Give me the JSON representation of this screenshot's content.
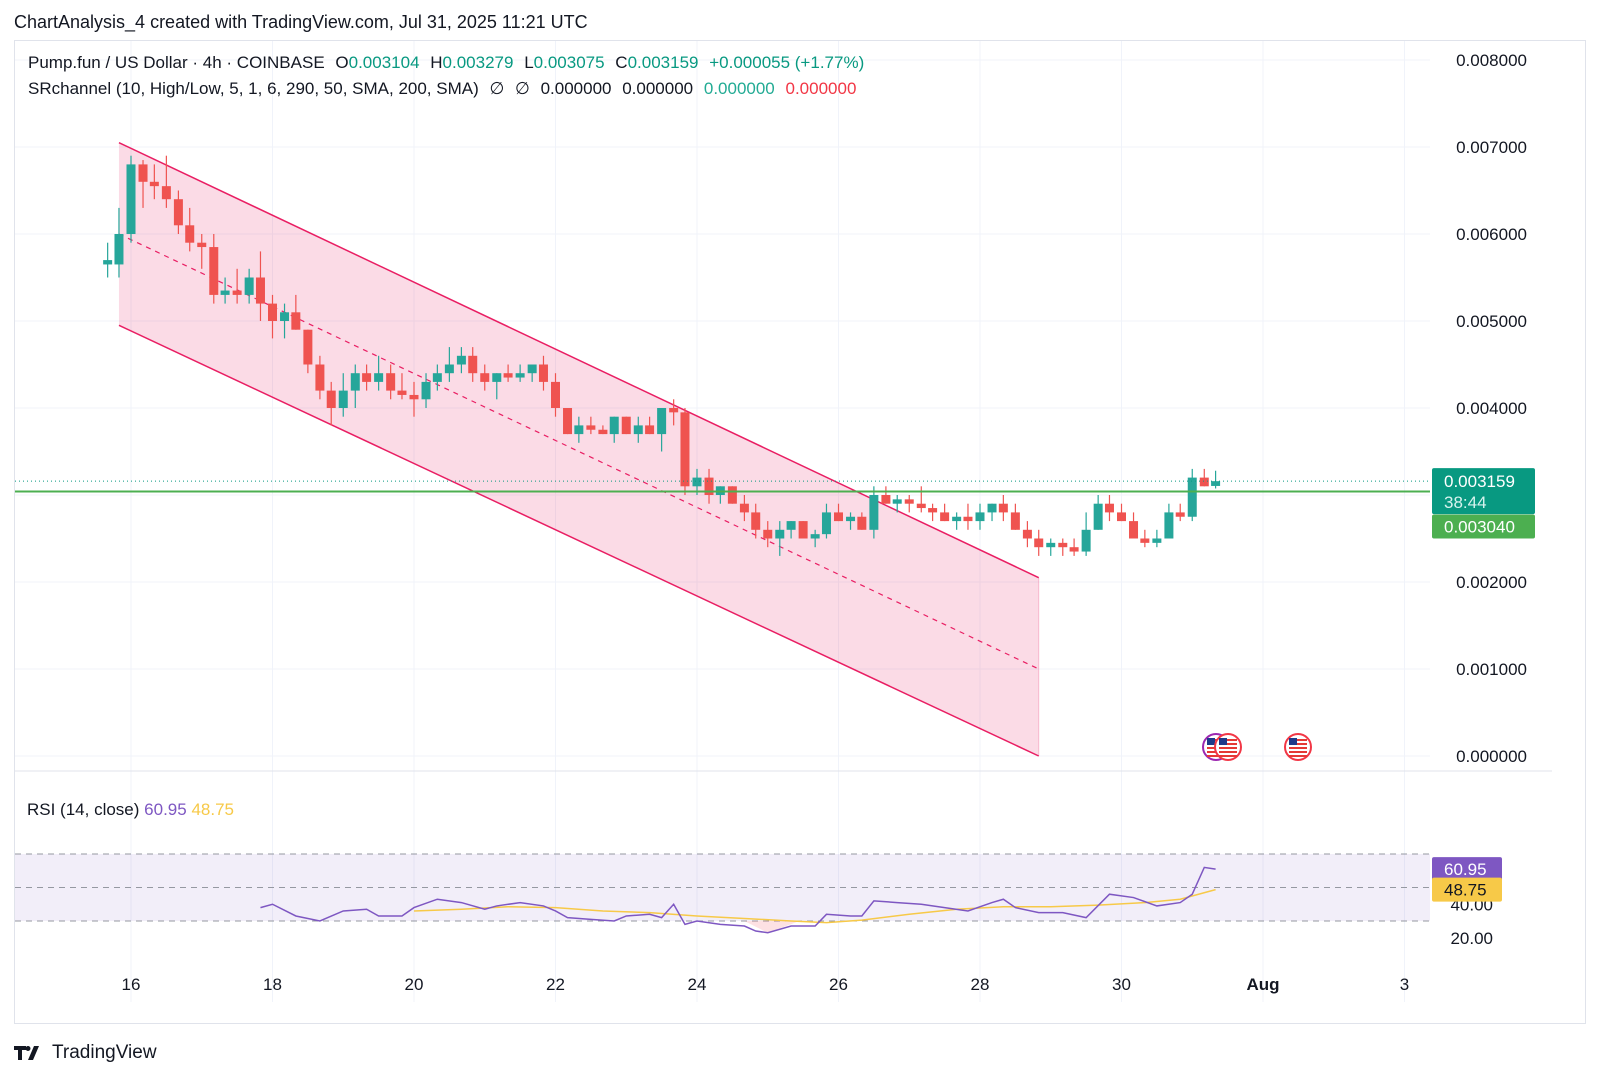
{
  "header": {
    "created": "ChartAnalysis_4 created with TradingView.com, Jul 31, 2025 11:21 UTC"
  },
  "legend": {
    "symbol": "Pump.fun / US Dollar · 4h · COINBASE",
    "open_label": "O",
    "open": "0.003104",
    "high_label": "H",
    "high": "0.003279",
    "low_label": "L",
    "low": "0.003075",
    "close_label": "C",
    "close": "0.003159",
    "change": "+0.000055 (+1.77%)",
    "indicator": "SRchannel (10, High/Low, 5, 1, 6, 290, 50, SMA, 200, SMA)",
    "ind_sym1": "∅",
    "ind_sym2": "∅",
    "ind_v1": "0.000000",
    "ind_v2": "0.000000",
    "ind_v3": "0.000000",
    "ind_v4": "0.000000"
  },
  "rsi_label": {
    "name": "RSI (14, close)",
    "value": "60.95",
    "ma": "48.75"
  },
  "price_axis": {
    "ticks": [
      "0.008000",
      "0.007000",
      "0.006000",
      "0.005000",
      "0.004000",
      "0.002000",
      "0.001000",
      "0.000000"
    ],
    "last_price": "0.003159",
    "countdown": "38:44",
    "level": "0.003040"
  },
  "rsi_axis": {
    "ticks": [
      "40.00",
      "20.00"
    ],
    "rsi_tag": "60.95",
    "ma_tag": "48.75"
  },
  "time_axis": {
    "ticks": [
      "16",
      "18",
      "20",
      "22",
      "24",
      "26",
      "28",
      "30",
      "Aug",
      "3"
    ]
  },
  "brand": {
    "name": "TradingView"
  },
  "colors": {
    "up": "#26a69a",
    "down": "#ef5350",
    "channel": "#e91e63",
    "level": "#4caf50",
    "rsi": "#7e57c2",
    "rsi_ma": "#f7c948"
  },
  "chart_data": {
    "type": "candlestick",
    "time_unit": "4h candles, July 15 - Aug 1 2025",
    "price_ylim": [
      0,
      0.008
    ],
    "channel": {
      "upper": {
        "from": [
          15.83,
          0.00705
        ],
        "to": [
          28.83,
          0.00205
        ]
      },
      "lower": {
        "from": [
          15.83,
          0.00495
        ],
        "to": [
          28.83,
          0.0
        ]
      },
      "mid": {
        "from": [
          15.83,
          0.006
        ],
        "to": [
          28.83,
          0.001
        ]
      }
    },
    "horizontal_level": 0.00304,
    "candles": [
      {
        "t": 15.67,
        "o": 0.00565,
        "h": 0.0059,
        "l": 0.0055,
        "c": 0.0057
      },
      {
        "t": 15.83,
        "o": 0.00565,
        "h": 0.0063,
        "l": 0.0055,
        "c": 0.006
      },
      {
        "t": 16.0,
        "o": 0.006,
        "h": 0.0069,
        "l": 0.0059,
        "c": 0.0068
      },
      {
        "t": 16.17,
        "o": 0.0068,
        "h": 0.00685,
        "l": 0.0063,
        "c": 0.0066
      },
      {
        "t": 16.33,
        "o": 0.0066,
        "h": 0.0068,
        "l": 0.0064,
        "c": 0.00655
      },
      {
        "t": 16.5,
        "o": 0.00655,
        "h": 0.0069,
        "l": 0.0063,
        "c": 0.0064
      },
      {
        "t": 16.67,
        "o": 0.0064,
        "h": 0.0065,
        "l": 0.006,
        "c": 0.0061
      },
      {
        "t": 16.83,
        "o": 0.0061,
        "h": 0.0063,
        "l": 0.0058,
        "c": 0.0059
      },
      {
        "t": 17.0,
        "o": 0.0059,
        "h": 0.006,
        "l": 0.0056,
        "c": 0.00585
      },
      {
        "t": 17.17,
        "o": 0.00585,
        "h": 0.006,
        "l": 0.0052,
        "c": 0.0053
      },
      {
        "t": 17.33,
        "o": 0.0053,
        "h": 0.0055,
        "l": 0.0052,
        "c": 0.00535
      },
      {
        "t": 17.5,
        "o": 0.00535,
        "h": 0.0056,
        "l": 0.0052,
        "c": 0.0053
      },
      {
        "t": 17.67,
        "o": 0.0053,
        "h": 0.0056,
        "l": 0.0052,
        "c": 0.0055
      },
      {
        "t": 17.83,
        "o": 0.0055,
        "h": 0.0058,
        "l": 0.005,
        "c": 0.0052
      },
      {
        "t": 18.0,
        "o": 0.0052,
        "h": 0.0053,
        "l": 0.0048,
        "c": 0.005
      },
      {
        "t": 18.17,
        "o": 0.005,
        "h": 0.0052,
        "l": 0.0048,
        "c": 0.0051
      },
      {
        "t": 18.33,
        "o": 0.0051,
        "h": 0.0053,
        "l": 0.0049,
        "c": 0.0049
      },
      {
        "t": 18.5,
        "o": 0.0049,
        "h": 0.0049,
        "l": 0.0044,
        "c": 0.0045
      },
      {
        "t": 18.67,
        "o": 0.0045,
        "h": 0.0046,
        "l": 0.0041,
        "c": 0.0042
      },
      {
        "t": 18.83,
        "o": 0.0042,
        "h": 0.0043,
        "l": 0.0038,
        "c": 0.004
      },
      {
        "t": 19.0,
        "o": 0.004,
        "h": 0.0044,
        "l": 0.0039,
        "c": 0.0042
      },
      {
        "t": 19.17,
        "o": 0.0042,
        "h": 0.0045,
        "l": 0.004,
        "c": 0.0044
      },
      {
        "t": 19.33,
        "o": 0.0044,
        "h": 0.0045,
        "l": 0.0042,
        "c": 0.0043
      },
      {
        "t": 19.5,
        "o": 0.0043,
        "h": 0.0046,
        "l": 0.0042,
        "c": 0.0044
      },
      {
        "t": 19.67,
        "o": 0.0044,
        "h": 0.0045,
        "l": 0.0041,
        "c": 0.0042
      },
      {
        "t": 19.83,
        "o": 0.0042,
        "h": 0.0044,
        "l": 0.0041,
        "c": 0.00415
      },
      {
        "t": 20.0,
        "o": 0.00415,
        "h": 0.0043,
        "l": 0.0039,
        "c": 0.0041
      },
      {
        "t": 20.17,
        "o": 0.0041,
        "h": 0.0044,
        "l": 0.004,
        "c": 0.0043
      },
      {
        "t": 20.33,
        "o": 0.0043,
        "h": 0.0045,
        "l": 0.0042,
        "c": 0.0044
      },
      {
        "t": 20.5,
        "o": 0.0044,
        "h": 0.0047,
        "l": 0.0043,
        "c": 0.0045
      },
      {
        "t": 20.67,
        "o": 0.0045,
        "h": 0.0047,
        "l": 0.0044,
        "c": 0.0046
      },
      {
        "t": 20.83,
        "o": 0.0046,
        "h": 0.0047,
        "l": 0.0043,
        "c": 0.0044
      },
      {
        "t": 21.0,
        "o": 0.0044,
        "h": 0.0045,
        "l": 0.0042,
        "c": 0.0043
      },
      {
        "t": 21.17,
        "o": 0.0043,
        "h": 0.0044,
        "l": 0.0041,
        "c": 0.0044
      },
      {
        "t": 21.33,
        "o": 0.0044,
        "h": 0.0045,
        "l": 0.0043,
        "c": 0.00435
      },
      {
        "t": 21.5,
        "o": 0.00435,
        "h": 0.0045,
        "l": 0.0043,
        "c": 0.0044
      },
      {
        "t": 21.67,
        "o": 0.0044,
        "h": 0.0045,
        "l": 0.0043,
        "c": 0.0045
      },
      {
        "t": 21.83,
        "o": 0.0045,
        "h": 0.0046,
        "l": 0.0042,
        "c": 0.0043
      },
      {
        "t": 22.0,
        "o": 0.0043,
        "h": 0.0044,
        "l": 0.0039,
        "c": 0.004
      },
      {
        "t": 22.17,
        "o": 0.004,
        "h": 0.004,
        "l": 0.0037,
        "c": 0.0037
      },
      {
        "t": 22.33,
        "o": 0.0037,
        "h": 0.0039,
        "l": 0.0036,
        "c": 0.0038
      },
      {
        "t": 22.5,
        "o": 0.0038,
        "h": 0.0039,
        "l": 0.0037,
        "c": 0.00375
      },
      {
        "t": 22.67,
        "o": 0.00375,
        "h": 0.0038,
        "l": 0.0037,
        "c": 0.0037
      },
      {
        "t": 22.83,
        "o": 0.0037,
        "h": 0.0039,
        "l": 0.0036,
        "c": 0.0039
      },
      {
        "t": 23.0,
        "o": 0.0039,
        "h": 0.0039,
        "l": 0.0037,
        "c": 0.0037
      },
      {
        "t": 23.17,
        "o": 0.0037,
        "h": 0.0039,
        "l": 0.0036,
        "c": 0.0038
      },
      {
        "t": 23.33,
        "o": 0.0038,
        "h": 0.0039,
        "l": 0.0037,
        "c": 0.0037
      },
      {
        "t": 23.5,
        "o": 0.0037,
        "h": 0.004,
        "l": 0.0035,
        "c": 0.004
      },
      {
        "t": 23.67,
        "o": 0.004,
        "h": 0.0041,
        "l": 0.0038,
        "c": 0.00395
      },
      {
        "t": 23.83,
        "o": 0.00395,
        "h": 0.004,
        "l": 0.003,
        "c": 0.0031
      },
      {
        "t": 24.0,
        "o": 0.0031,
        "h": 0.0033,
        "l": 0.003,
        "c": 0.0032
      },
      {
        "t": 24.17,
        "o": 0.0032,
        "h": 0.0033,
        "l": 0.0029,
        "c": 0.003
      },
      {
        "t": 24.33,
        "o": 0.003,
        "h": 0.0031,
        "l": 0.0029,
        "c": 0.0031
      },
      {
        "t": 24.5,
        "o": 0.0031,
        "h": 0.0031,
        "l": 0.0029,
        "c": 0.0029
      },
      {
        "t": 24.67,
        "o": 0.0029,
        "h": 0.003,
        "l": 0.0027,
        "c": 0.0028
      },
      {
        "t": 24.83,
        "o": 0.0028,
        "h": 0.0029,
        "l": 0.0025,
        "c": 0.0026
      },
      {
        "t": 25.0,
        "o": 0.0026,
        "h": 0.0027,
        "l": 0.0024,
        "c": 0.0025
      },
      {
        "t": 25.17,
        "o": 0.0025,
        "h": 0.0027,
        "l": 0.0023,
        "c": 0.0026
      },
      {
        "t": 25.33,
        "o": 0.0026,
        "h": 0.0027,
        "l": 0.0025,
        "c": 0.0027
      },
      {
        "t": 25.5,
        "o": 0.0027,
        "h": 0.0027,
        "l": 0.0025,
        "c": 0.0025
      },
      {
        "t": 25.67,
        "o": 0.0025,
        "h": 0.0026,
        "l": 0.0024,
        "c": 0.00255
      },
      {
        "t": 25.83,
        "o": 0.00255,
        "h": 0.0029,
        "l": 0.0025,
        "c": 0.0028
      },
      {
        "t": 26.0,
        "o": 0.0028,
        "h": 0.0029,
        "l": 0.0027,
        "c": 0.0027
      },
      {
        "t": 26.17,
        "o": 0.0027,
        "h": 0.0028,
        "l": 0.0026,
        "c": 0.00275
      },
      {
        "t": 26.33,
        "o": 0.00275,
        "h": 0.0028,
        "l": 0.0026,
        "c": 0.0026
      },
      {
        "t": 26.5,
        "o": 0.0026,
        "h": 0.0031,
        "l": 0.0025,
        "c": 0.003
      },
      {
        "t": 26.67,
        "o": 0.003,
        "h": 0.0031,
        "l": 0.0029,
        "c": 0.0029
      },
      {
        "t": 26.83,
        "o": 0.0029,
        "h": 0.003,
        "l": 0.0028,
        "c": 0.00295
      },
      {
        "t": 27.0,
        "o": 0.00295,
        "h": 0.003,
        "l": 0.0028,
        "c": 0.0029
      },
      {
        "t": 27.17,
        "o": 0.0029,
        "h": 0.0031,
        "l": 0.0028,
        "c": 0.00285
      },
      {
        "t": 27.33,
        "o": 0.00285,
        "h": 0.0029,
        "l": 0.0027,
        "c": 0.0028
      },
      {
        "t": 27.5,
        "o": 0.0028,
        "h": 0.0029,
        "l": 0.0027,
        "c": 0.0027
      },
      {
        "t": 27.67,
        "o": 0.0027,
        "h": 0.0028,
        "l": 0.0026,
        "c": 0.00275
      },
      {
        "t": 27.83,
        "o": 0.00275,
        "h": 0.0029,
        "l": 0.0026,
        "c": 0.0027
      },
      {
        "t": 28.0,
        "o": 0.0027,
        "h": 0.0029,
        "l": 0.0026,
        "c": 0.0028
      },
      {
        "t": 28.17,
        "o": 0.0028,
        "h": 0.0029,
        "l": 0.0027,
        "c": 0.0029
      },
      {
        "t": 28.33,
        "o": 0.0029,
        "h": 0.003,
        "l": 0.0027,
        "c": 0.0028
      },
      {
        "t": 28.5,
        "o": 0.0028,
        "h": 0.0029,
        "l": 0.0026,
        "c": 0.0026
      },
      {
        "t": 28.67,
        "o": 0.0026,
        "h": 0.0027,
        "l": 0.0024,
        "c": 0.0025
      },
      {
        "t": 28.83,
        "o": 0.0025,
        "h": 0.0026,
        "l": 0.0023,
        "c": 0.0024
      },
      {
        "t": 29.0,
        "o": 0.0024,
        "h": 0.0025,
        "l": 0.0023,
        "c": 0.00245
      },
      {
        "t": 29.17,
        "o": 0.00245,
        "h": 0.0025,
        "l": 0.0023,
        "c": 0.0024
      },
      {
        "t": 29.33,
        "o": 0.0024,
        "h": 0.0025,
        "l": 0.0023,
        "c": 0.00235
      },
      {
        "t": 29.5,
        "o": 0.00235,
        "h": 0.0028,
        "l": 0.0023,
        "c": 0.0026
      },
      {
        "t": 29.67,
        "o": 0.0026,
        "h": 0.003,
        "l": 0.0026,
        "c": 0.0029
      },
      {
        "t": 29.83,
        "o": 0.0029,
        "h": 0.003,
        "l": 0.0027,
        "c": 0.0028
      },
      {
        "t": 30.0,
        "o": 0.0028,
        "h": 0.0029,
        "l": 0.0027,
        "c": 0.0027
      },
      {
        "t": 30.17,
        "o": 0.0027,
        "h": 0.0028,
        "l": 0.0025,
        "c": 0.0025
      },
      {
        "t": 30.33,
        "o": 0.0025,
        "h": 0.0026,
        "l": 0.0024,
        "c": 0.00245
      },
      {
        "t": 30.5,
        "o": 0.00245,
        "h": 0.0026,
        "l": 0.0024,
        "c": 0.0025
      },
      {
        "t": 30.67,
        "o": 0.0025,
        "h": 0.0029,
        "l": 0.0025,
        "c": 0.0028
      },
      {
        "t": 30.83,
        "o": 0.0028,
        "h": 0.0029,
        "l": 0.0027,
        "c": 0.00275
      },
      {
        "t": 31.0,
        "o": 0.00275,
        "h": 0.0033,
        "l": 0.0027,
        "c": 0.0032
      },
      {
        "t": 31.17,
        "o": 0.0032,
        "h": 0.0033,
        "l": 0.0031,
        "c": 0.0031
      },
      {
        "t": 31.33,
        "o": 0.003104,
        "h": 0.003279,
        "l": 0.003075,
        "c": 0.003159
      }
    ],
    "rsi_ylim": [
      15,
      65
    ],
    "rsi_band": [
      30,
      70
    ],
    "rsi": [
      {
        "t": 17.83,
        "v": 38
      },
      {
        "t": 18.0,
        "v": 40
      },
      {
        "t": 18.33,
        "v": 33
      },
      {
        "t": 18.67,
        "v": 30
      },
      {
        "t": 19.0,
        "v": 36
      },
      {
        "t": 19.33,
        "v": 37
      },
      {
        "t": 19.5,
        "v": 33
      },
      {
        "t": 19.83,
        "v": 33
      },
      {
        "t": 20.0,
        "v": 38
      },
      {
        "t": 20.33,
        "v": 43
      },
      {
        "t": 20.67,
        "v": 41
      },
      {
        "t": 21.0,
        "v": 37
      },
      {
        "t": 21.17,
        "v": 39
      },
      {
        "t": 21.5,
        "v": 41
      },
      {
        "t": 21.83,
        "v": 39
      },
      {
        "t": 22.0,
        "v": 36
      },
      {
        "t": 22.17,
        "v": 32
      },
      {
        "t": 22.5,
        "v": 31
      },
      {
        "t": 22.83,
        "v": 30
      },
      {
        "t": 23.0,
        "v": 33
      },
      {
        "t": 23.33,
        "v": 34
      },
      {
        "t": 23.5,
        "v": 32
      },
      {
        "t": 23.67,
        "v": 40
      },
      {
        "t": 23.83,
        "v": 28
      },
      {
        "t": 24.0,
        "v": 30
      },
      {
        "t": 24.33,
        "v": 28
      },
      {
        "t": 24.67,
        "v": 27
      },
      {
        "t": 24.83,
        "v": 24
      },
      {
        "t": 25.0,
        "v": 23
      },
      {
        "t": 25.33,
        "v": 27
      },
      {
        "t": 25.67,
        "v": 27
      },
      {
        "t": 25.83,
        "v": 34
      },
      {
        "t": 26.17,
        "v": 33
      },
      {
        "t": 26.33,
        "v": 33
      },
      {
        "t": 26.5,
        "v": 42
      },
      {
        "t": 26.83,
        "v": 41
      },
      {
        "t": 27.17,
        "v": 40
      },
      {
        "t": 27.5,
        "v": 38
      },
      {
        "t": 27.83,
        "v": 36
      },
      {
        "t": 28.17,
        "v": 41
      },
      {
        "t": 28.33,
        "v": 43
      },
      {
        "t": 28.5,
        "v": 38
      },
      {
        "t": 28.83,
        "v": 35
      },
      {
        "t": 29.17,
        "v": 35
      },
      {
        "t": 29.5,
        "v": 32
      },
      {
        "t": 29.83,
        "v": 46
      },
      {
        "t": 30.17,
        "v": 44
      },
      {
        "t": 30.5,
        "v": 39
      },
      {
        "t": 30.83,
        "v": 41
      },
      {
        "t": 31.0,
        "v": 46
      },
      {
        "t": 31.17,
        "v": 62
      },
      {
        "t": 31.33,
        "v": 60.95
      }
    ],
    "rsi_ma": [
      {
        "t": 20.0,
        "v": 36
      },
      {
        "t": 20.67,
        "v": 37
      },
      {
        "t": 21.33,
        "v": 38.5
      },
      {
        "t": 22.0,
        "v": 38
      },
      {
        "t": 22.67,
        "v": 36
      },
      {
        "t": 23.33,
        "v": 35
      },
      {
        "t": 24.0,
        "v": 33
      },
      {
        "t": 24.67,
        "v": 31.5
      },
      {
        "t": 25.33,
        "v": 30
      },
      {
        "t": 25.83,
        "v": 29
      },
      {
        "t": 26.33,
        "v": 30.5
      },
      {
        "t": 27.0,
        "v": 34
      },
      {
        "t": 27.67,
        "v": 37
      },
      {
        "t": 28.33,
        "v": 38.5
      },
      {
        "t": 29.0,
        "v": 38.5
      },
      {
        "t": 29.67,
        "v": 39.5
      },
      {
        "t": 30.33,
        "v": 41
      },
      {
        "t": 30.83,
        "v": 43
      },
      {
        "t": 31.33,
        "v": 48.75
      }
    ],
    "time_ticks": [
      {
        "label": "16",
        "t": 16
      },
      {
        "label": "18",
        "t": 18
      },
      {
        "label": "20",
        "t": 20
      },
      {
        "label": "22",
        "t": 22
      },
      {
        "label": "24",
        "t": 24
      },
      {
        "label": "26",
        "t": 26
      },
      {
        "label": "28",
        "t": 28
      },
      {
        "label": "30",
        "t": 30
      },
      {
        "label": "Aug",
        "t": 32
      },
      {
        "label": "3",
        "t": 34
      }
    ]
  }
}
